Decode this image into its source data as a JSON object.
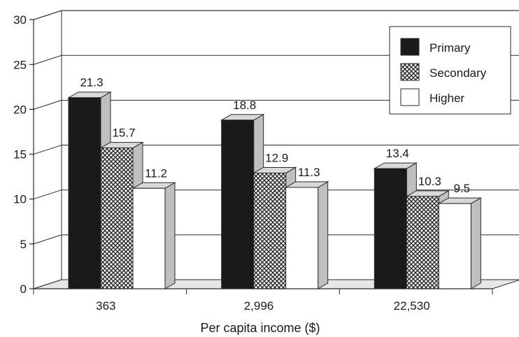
{
  "chart_data": {
    "type": "bar",
    "style": "3d-clustered",
    "xlabel": "Per capita income ($)",
    "ylabel": "",
    "ylim": [
      0,
      30
    ],
    "yticks": [
      0,
      5,
      10,
      15,
      20,
      25,
      30
    ],
    "categories": [
      "363",
      "2,996",
      "22,530"
    ],
    "series": [
      {
        "name": "Primary",
        "fill": "solid-black",
        "values": [
          21.3,
          18.8,
          13.4
        ],
        "labels": [
          "21.3",
          "18.8",
          "13.4"
        ]
      },
      {
        "name": "Secondary",
        "fill": "crosshatch",
        "values": [
          15.7,
          12.9,
          10.3
        ],
        "labels": [
          "15.7",
          "12.9",
          "10.3"
        ]
      },
      {
        "name": "Higher",
        "fill": "white",
        "values": [
          11.2,
          11.3,
          9.5
        ],
        "labels": [
          "11.2",
          "11.3",
          "9.5"
        ]
      }
    ],
    "grid": true,
    "legend_position": "top-right",
    "colors": {
      "primary": "#1a1a1a",
      "secondary_line": "#3a3a3a",
      "higher": "#ffffff",
      "side": "#bfbfbf",
      "top": "#d9d9d9",
      "wall": "#ffffff",
      "floor": "#e6e6e6"
    }
  }
}
